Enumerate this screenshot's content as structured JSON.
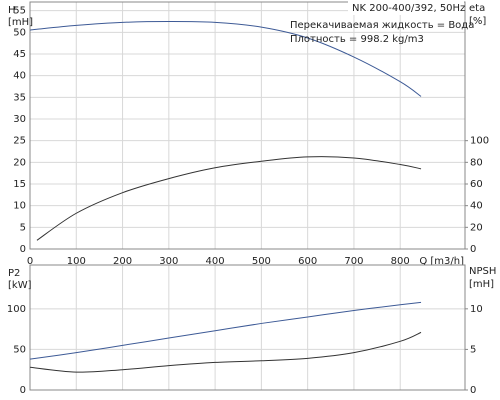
{
  "chart_data": [
    {
      "type": "line",
      "title": "NK 200-400/392, 50Hz",
      "annotations": [
        "Перекачиваемая жидкость = Вода",
        "Плотность = 998.2 kg/m3"
      ],
      "ylabel": [
        "H",
        "[mH]"
      ],
      "y2label": [
        "eta",
        "[%]"
      ],
      "xlabel": "Q [m3/h]",
      "x": [
        0,
        15,
        100,
        200,
        300,
        400,
        500,
        600,
        700,
        800,
        845
      ],
      "series": [
        {
          "name": "H",
          "color": "#3d5a96",
          "values": [
            50.5,
            50.7,
            51.6,
            52.3,
            52.5,
            52.3,
            51.2,
            48.7,
            44.3,
            38.6,
            35.2
          ]
        },
        {
          "name": "eta",
          "color": "#333333",
          "axis": "y2",
          "values": [
            null,
            8,
            33,
            52,
            65,
            75,
            81,
            85,
            84,
            78,
            74
          ]
        }
      ],
      "xlim": [
        0,
        940
      ],
      "xticks": [
        0,
        100,
        200,
        300,
        400,
        500,
        600,
        700,
        800
      ],
      "show_xtick_labels": true,
      "ylim": [
        0,
        57
      ],
      "yticks": [
        0,
        5,
        10,
        15,
        20,
        25,
        30,
        35,
        40,
        45,
        50,
        55
      ],
      "y2lim": [
        0,
        228
      ],
      "y2ticks": [
        0,
        20,
        40,
        60,
        80,
        100
      ],
      "grid": true
    },
    {
      "type": "line",
      "ylabel": [
        "P2",
        "[kW]"
      ],
      "y2label": [
        "NPSH",
        "[mH]"
      ],
      "x": [
        0,
        100,
        200,
        300,
        400,
        500,
        600,
        700,
        800,
        845
      ],
      "series": [
        {
          "name": "P2",
          "color": "#3d5a96",
          "values": [
            38,
            46,
            55,
            64,
            73,
            82,
            90,
            98,
            105,
            108
          ]
        },
        {
          "name": "NPSH",
          "color": "#333333",
          "axis": "y2",
          "values": [
            2.8,
            2.2,
            2.5,
            3.0,
            3.4,
            3.6,
            3.9,
            4.6,
            6.0,
            7.1
          ]
        }
      ],
      "xlim": [
        0,
        940
      ],
      "xticks": [
        0,
        100,
        200,
        300,
        400,
        500,
        600,
        700,
        800
      ],
      "show_xtick_labels": false,
      "ylim": [
        0,
        154
      ],
      "yticks": [
        0,
        50,
        100
      ],
      "y2lim": [
        0,
        15.4
      ],
      "y2ticks": [
        0,
        5,
        10
      ],
      "grid": true
    }
  ]
}
